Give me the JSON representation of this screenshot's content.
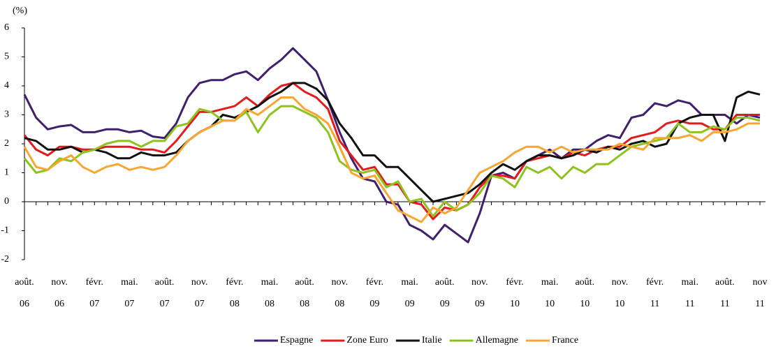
{
  "chart_data": {
    "type": "line",
    "y_unit_label": "(%)",
    "categories": [
      [
        "août.",
        "06"
      ],
      null,
      null,
      [
        "nov.",
        "06"
      ],
      null,
      null,
      [
        "févr.",
        "07"
      ],
      null,
      null,
      [
        "mai.",
        "07"
      ],
      null,
      null,
      [
        "août.",
        "07"
      ],
      null,
      null,
      [
        "nov.",
        "07"
      ],
      null,
      null,
      [
        "févr.",
        "08"
      ],
      null,
      null,
      [
        "mai.",
        "08"
      ],
      null,
      null,
      [
        "août.",
        "08"
      ],
      null,
      null,
      [
        "nov.",
        "08"
      ],
      null,
      null,
      [
        "févr.",
        "09"
      ],
      null,
      null,
      [
        "mai.",
        "09"
      ],
      null,
      null,
      [
        "août.",
        "09"
      ],
      null,
      null,
      [
        "nov.",
        "09"
      ],
      null,
      null,
      [
        "févr.",
        "10"
      ],
      null,
      null,
      [
        "mai.",
        "10"
      ],
      null,
      null,
      [
        "août.",
        "10"
      ],
      null,
      null,
      [
        "nov.",
        "10"
      ],
      null,
      null,
      [
        "févr.",
        "11"
      ],
      null,
      null,
      [
        "mai.",
        "11"
      ],
      null,
      null,
      [
        "août.",
        "11"
      ],
      null,
      null,
      [
        "nov",
        "11"
      ]
    ],
    "series": [
      {
        "name": "Espagne",
        "color": "#3f1f6e",
        "values": [
          3.7,
          2.9,
          2.5,
          2.6,
          2.65,
          2.4,
          2.4,
          2.5,
          2.5,
          2.4,
          2.45,
          2.25,
          2.2,
          2.7,
          3.6,
          4.1,
          4.2,
          4.2,
          4.4,
          4.5,
          4.2,
          4.6,
          4.9,
          5.3,
          4.9,
          4.5,
          3.5,
          2.4,
          1.5,
          0.8,
          0.7,
          0.0,
          -0.1,
          -0.8,
          -1.0,
          -1.3,
          -0.8,
          -1.1,
          -1.4,
          -0.4,
          0.9,
          1.0,
          0.8,
          1.4,
          1.6,
          1.8,
          1.5,
          1.8,
          1.8,
          2.1,
          2.3,
          2.2,
          2.9,
          3.0,
          3.4,
          3.3,
          3.5,
          3.4,
          3.0,
          3.0,
          3.0,
          2.7,
          3.0,
          2.9
        ]
      },
      {
        "name": "Zone Euro",
        "color": "#e41a1c",
        "values": [
          2.3,
          1.8,
          1.6,
          1.9,
          1.9,
          1.8,
          1.8,
          1.9,
          1.9,
          1.9,
          1.8,
          1.8,
          1.7,
          2.1,
          2.6,
          3.1,
          3.1,
          3.2,
          3.3,
          3.6,
          3.3,
          3.7,
          4.0,
          4.1,
          3.8,
          3.6,
          3.2,
          2.1,
          1.6,
          1.1,
          1.2,
          0.6,
          0.6,
          0.0,
          -0.1,
          -0.6,
          -0.2,
          -0.3,
          -0.1,
          0.5,
          0.9,
          0.9,
          0.8,
          1.4,
          1.5,
          1.6,
          1.5,
          1.7,
          1.6,
          1.8,
          1.9,
          1.9,
          2.2,
          2.3,
          2.4,
          2.7,
          2.8,
          2.7,
          2.7,
          2.5,
          2.5,
          3.0,
          3.0,
          3.0
        ]
      },
      {
        "name": "Italie",
        "color": "#111111",
        "values": [
          2.2,
          2.1,
          1.8,
          1.8,
          1.9,
          1.7,
          1.8,
          1.7,
          1.5,
          1.5,
          1.7,
          1.6,
          1.6,
          1.7,
          2.1,
          2.4,
          2.6,
          3.0,
          2.9,
          3.1,
          3.3,
          3.6,
          3.8,
          4.1,
          4.1,
          3.9,
          3.5,
          2.7,
          2.2,
          1.6,
          1.6,
          1.2,
          1.2,
          0.8,
          0.4,
          0.0,
          0.1,
          0.2,
          0.3,
          0.6,
          1.0,
          1.3,
          1.1,
          1.4,
          1.6,
          1.6,
          1.5,
          1.6,
          1.8,
          1.7,
          1.9,
          1.8,
          2.0,
          2.1,
          1.9,
          2.0,
          2.7,
          2.9,
          3.0,
          3.0,
          2.1,
          3.6,
          3.8,
          3.7
        ]
      },
      {
        "name": "Allemagne",
        "color": "#8dc21f",
        "values": [
          1.5,
          1.0,
          1.1,
          1.5,
          1.4,
          1.7,
          1.8,
          2.0,
          2.1,
          2.1,
          1.9,
          2.1,
          2.1,
          2.6,
          2.7,
          3.2,
          3.1,
          2.8,
          2.8,
          3.1,
          2.4,
          3.0,
          3.3,
          3.3,
          3.1,
          2.9,
          2.4,
          1.4,
          1.1,
          1.0,
          1.1,
          0.5,
          0.7,
          0.0,
          0.1,
          -0.5,
          0.0,
          -0.3,
          -0.1,
          0.3,
          0.9,
          0.8,
          0.5,
          1.2,
          1.0,
          1.2,
          0.8,
          1.2,
          1.0,
          1.3,
          1.3,
          1.6,
          1.9,
          2.0,
          2.1,
          2.2,
          2.7,
          2.4,
          2.4,
          2.6,
          2.5,
          2.9,
          2.9,
          2.8
        ]
      },
      {
        "name": "France",
        "color": "#f7a631",
        "values": [
          1.9,
          1.2,
          1.1,
          1.4,
          1.6,
          1.2,
          1.0,
          1.2,
          1.3,
          1.1,
          1.2,
          1.1,
          1.2,
          1.6,
          2.1,
          2.4,
          2.6,
          2.8,
          2.8,
          3.2,
          3.0,
          3.3,
          3.6,
          3.6,
          3.2,
          3.0,
          2.7,
          1.9,
          1.0,
          0.8,
          0.9,
          0.3,
          -0.3,
          -0.5,
          -0.7,
          -0.2,
          -0.4,
          -0.2,
          0.4,
          1.0,
          1.2,
          1.4,
          1.7,
          1.9,
          1.9,
          1.7,
          1.9,
          1.7,
          1.8,
          1.8,
          1.8,
          2.0,
          1.9,
          1.8,
          2.2,
          2.2,
          2.2,
          2.3,
          2.1,
          2.4,
          2.4,
          2.5,
          2.7,
          2.7
        ]
      }
    ],
    "ylim": [
      -2,
      6
    ],
    "yticks": [
      -2,
      -1,
      0,
      1,
      2,
      3,
      4,
      5,
      6
    ],
    "legend": "bottom"
  }
}
